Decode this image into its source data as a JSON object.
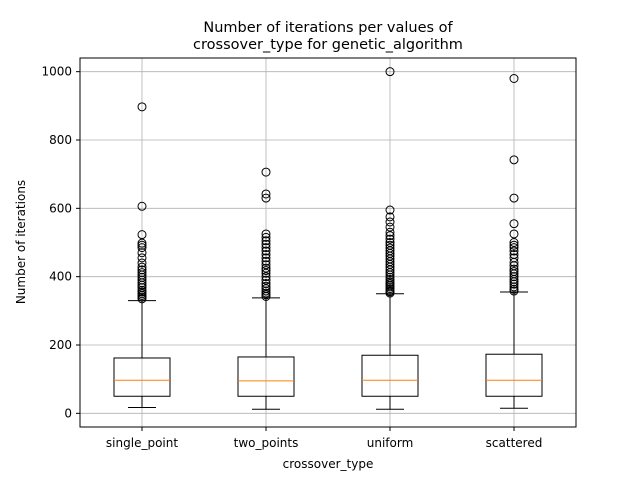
{
  "chart_data": {
    "type": "box",
    "title_line1": "Number of iterations per values of",
    "title_line2": "crossover_type for genetic_algorithm",
    "xlabel": "crossover_type",
    "ylabel": "Number of iterations",
    "categories": [
      "single_point",
      "two_points",
      "uniform",
      "scattered"
    ],
    "ylim": [
      -40,
      1040
    ],
    "yticks": [
      0,
      200,
      400,
      600,
      800,
      1000
    ],
    "grid": true,
    "colors": {
      "box": "#000000",
      "median": "#ff7f0e",
      "grid": "#b0b0b0"
    },
    "boxes": [
      {
        "category": "single_point",
        "whisker_low": 17,
        "q1": 50,
        "median": 97,
        "q3": 162,
        "whisker_high": 330,
        "fliers": [
          335,
          340,
          345,
          350,
          355,
          360,
          368,
          375,
          382,
          390,
          398,
          405,
          412,
          420,
          428,
          440,
          455,
          470,
          485,
          492,
          498,
          523,
          606,
          897
        ]
      },
      {
        "category": "two_points",
        "whisker_low": 12,
        "q1": 50,
        "median": 95,
        "q3": 165,
        "whisker_high": 338,
        "fliers": [
          342,
          347,
          352,
          358,
          365,
          372,
          380,
          390,
          400,
          410,
          418,
          425,
          435,
          445,
          455,
          465,
          475,
          485,
          495,
          505,
          515,
          525,
          630,
          642,
          706
        ]
      },
      {
        "category": "uniform",
        "whisker_low": 12,
        "q1": 50,
        "median": 97,
        "q3": 170,
        "whisker_high": 350,
        "fliers": [
          352,
          356,
          360,
          365,
          370,
          375,
          380,
          385,
          392,
          398,
          405,
          412,
          420,
          428,
          436,
          444,
          452,
          460,
          468,
          476,
          484,
          492,
          500,
          510,
          520,
          530,
          545,
          560,
          575,
          595,
          1000
        ]
      },
      {
        "category": "scattered",
        "whisker_low": 15,
        "q1": 50,
        "median": 97,
        "q3": 173,
        "whisker_high": 355,
        "fliers": [
          358,
          363,
          370,
          378,
          385,
          392,
          400,
          408,
          415,
          422,
          432,
          442,
          455,
          465,
          475,
          485,
          492,
          500,
          525,
          555,
          630,
          742,
          980
        ]
      }
    ]
  }
}
